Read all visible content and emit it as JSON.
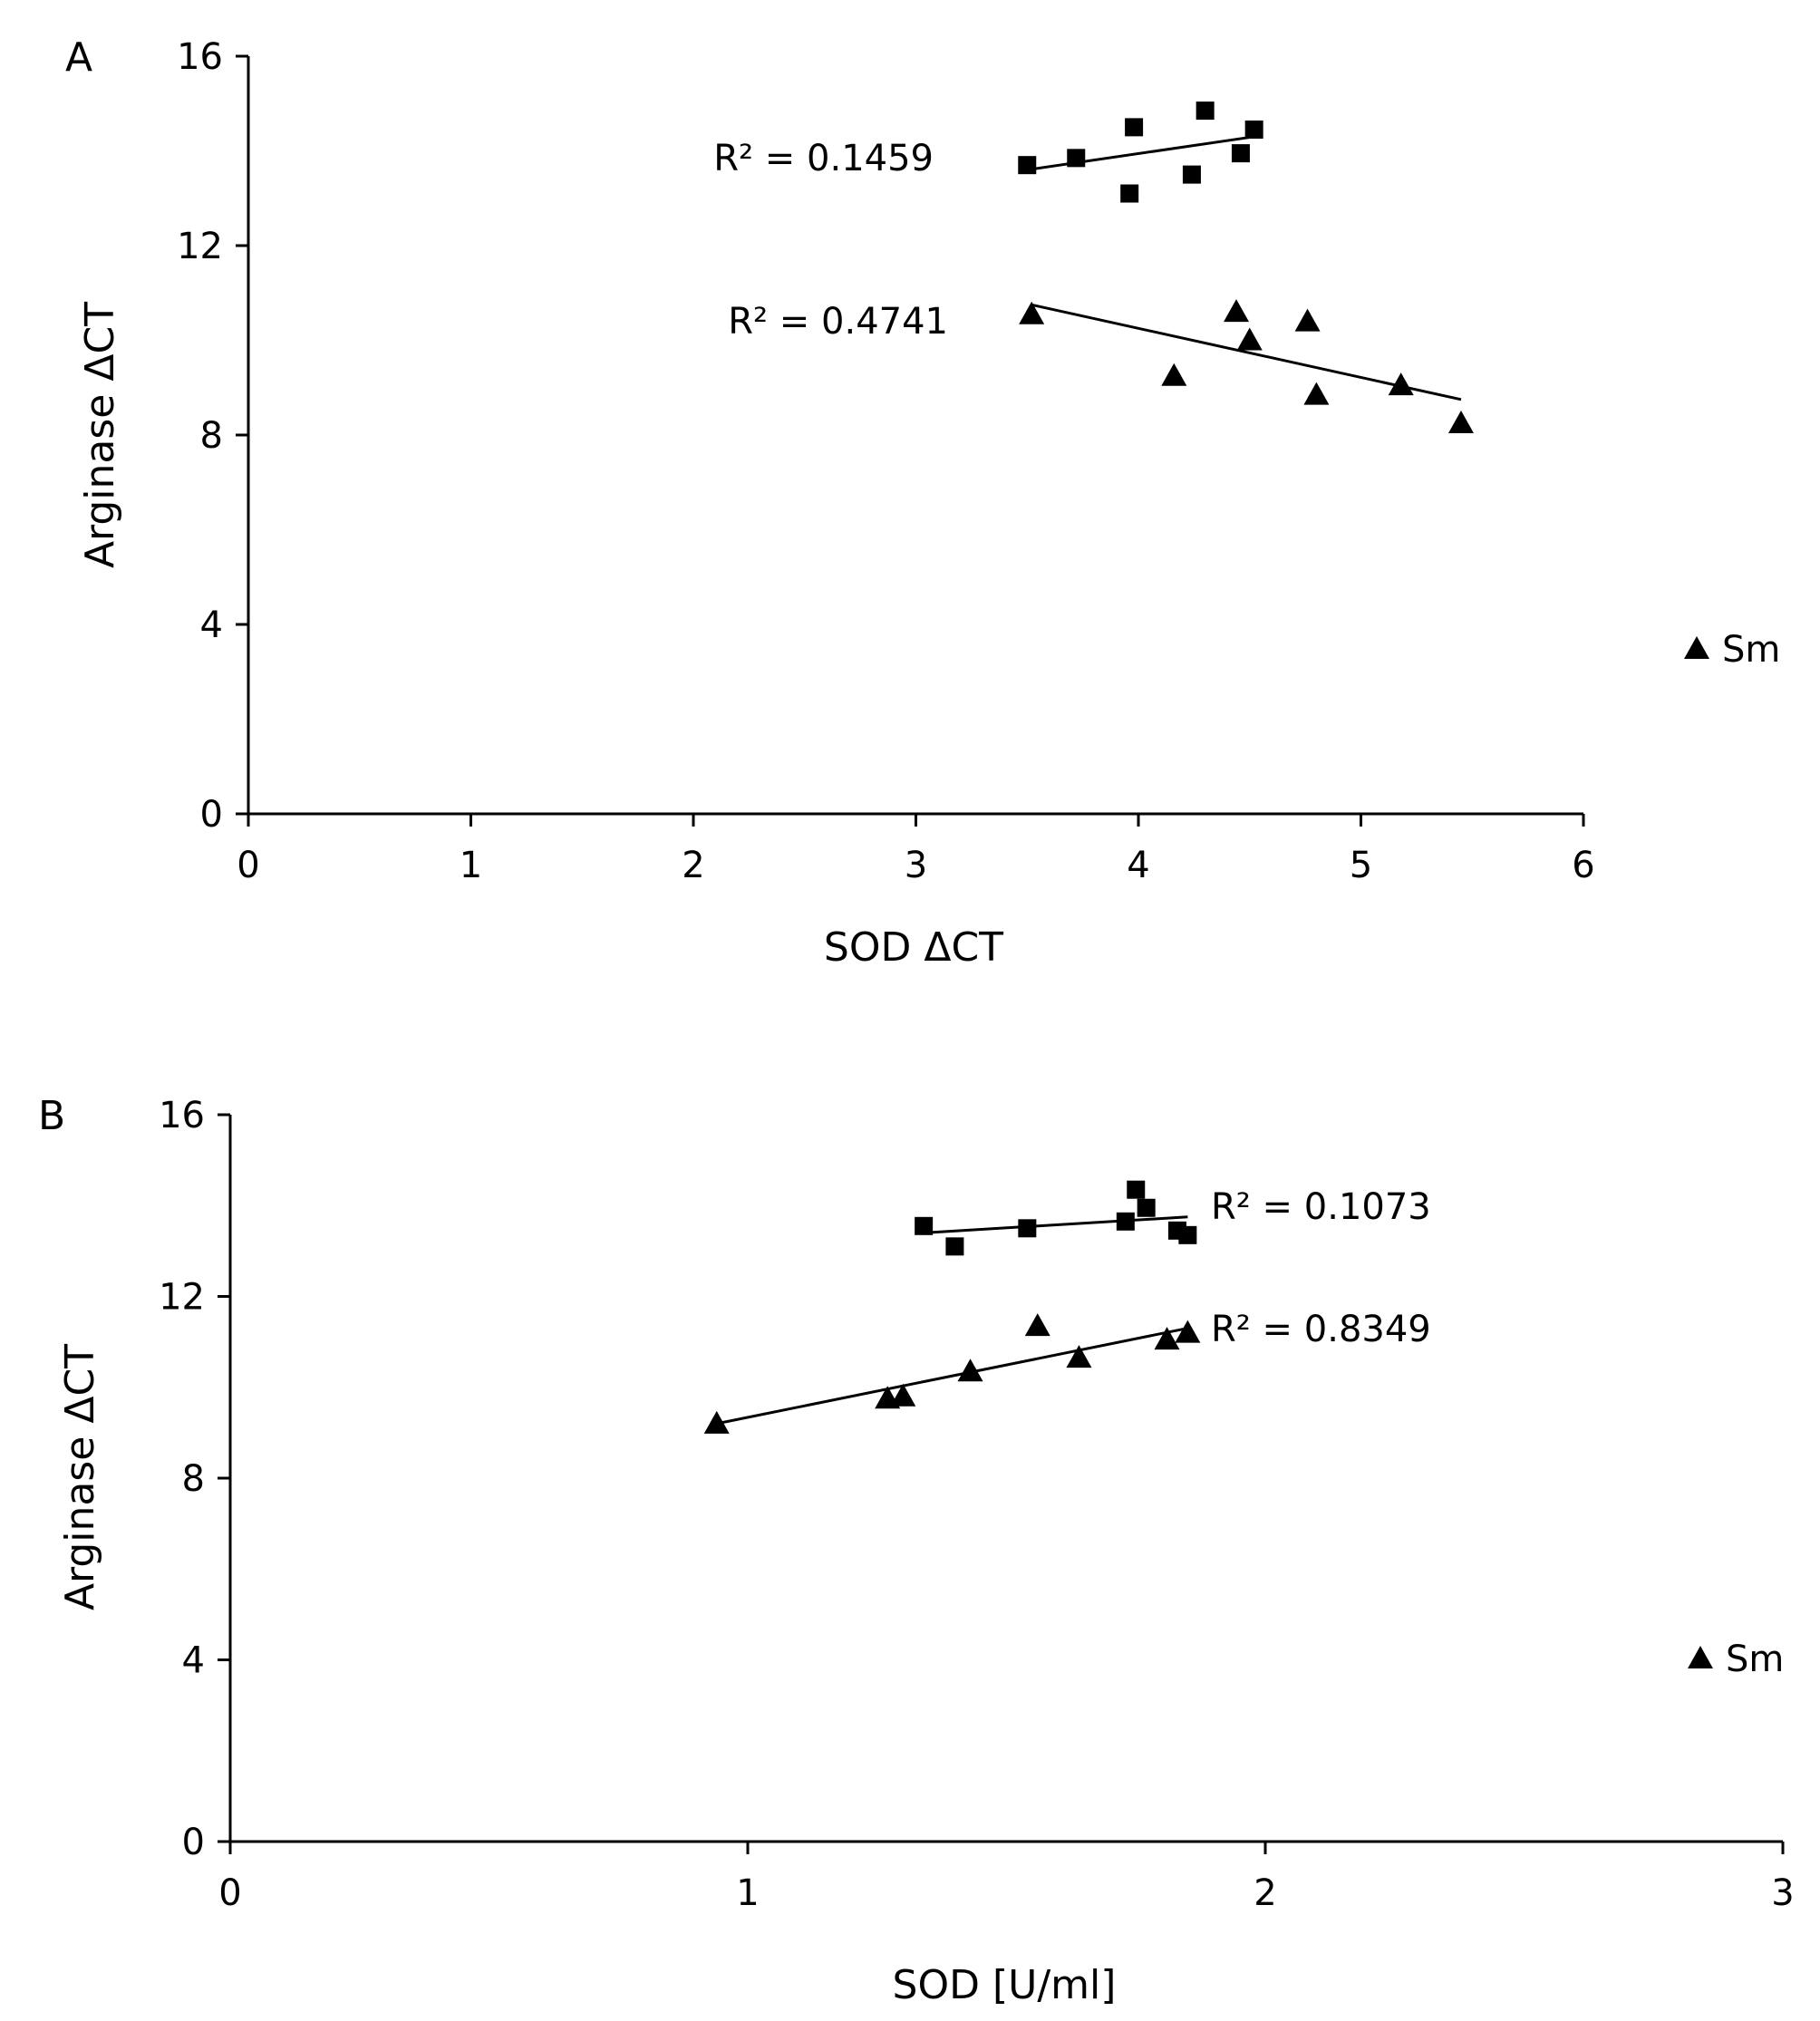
{
  "chart_data": [
    {
      "type": "scatter",
      "panel_label": "A",
      "xlabel": "SOD ΔCT",
      "ylabel": "Arginase  ΔCT",
      "xlim": [
        0,
        6
      ],
      "ylim": [
        0,
        16
      ],
      "xticks": [
        "0",
        "1",
        "2",
        "3",
        "4",
        "5",
        "6"
      ],
      "yticks": [
        "0",
        "4",
        "8",
        "12",
        "16"
      ],
      "legend": {
        "label": "Sm",
        "marker": "triangle",
        "position": "right"
      },
      "series": [
        {
          "name": "square-series",
          "marker": "square",
          "points": [
            [
              3.5,
              13.7
            ],
            [
              3.72,
              13.85
            ],
            [
              3.96,
              13.1
            ],
            [
              3.98,
              14.5
            ],
            [
              4.24,
              13.5
            ],
            [
              4.3,
              14.85
            ],
            [
              4.46,
              13.95
            ],
            [
              4.52,
              14.45
            ]
          ],
          "trendline": {
            "x": [
              3.5,
              4.52
            ],
            "y": [
              13.6,
              14.3
            ]
          },
          "r2_label": "R² = 0.1459"
        },
        {
          "name": "triangle-series",
          "marker": "triangle",
          "points": [
            [
              3.52,
              10.55
            ],
            [
              4.16,
              9.25
            ],
            [
              4.44,
              10.6
            ],
            [
              4.5,
              10.0
            ],
            [
              4.76,
              10.4
            ],
            [
              4.8,
              8.85
            ],
            [
              5.18,
              9.05
            ],
            [
              5.45,
              8.25
            ]
          ],
          "trendline": {
            "x": [
              3.52,
              5.45
            ],
            "y": [
              10.75,
              8.75
            ]
          },
          "r2_label": "R² = 0.4741"
        }
      ]
    },
    {
      "type": "scatter",
      "panel_label": "B",
      "xlabel": "SOD [U/ml]",
      "ylabel": "Arginase  ΔCT",
      "xlim": [
        0,
        3
      ],
      "ylim": [
        0,
        16
      ],
      "xticks": [
        "0",
        "1",
        "2",
        "3"
      ],
      "yticks": [
        "0",
        "4",
        "8",
        "12",
        "16"
      ],
      "legend": {
        "label": "Sm",
        "marker": "triangle",
        "position": "right"
      },
      "series": [
        {
          "name": "square-series",
          "marker": "square",
          "points": [
            [
              1.34,
              13.55
            ],
            [
              1.4,
              13.1
            ],
            [
              1.54,
              13.5
            ],
            [
              1.73,
              13.65
            ],
            [
              1.75,
              14.35
            ],
            [
              1.77,
              13.95
            ],
            [
              1.83,
              13.45
            ],
            [
              1.85,
              13.35
            ]
          ],
          "trendline": {
            "x": [
              1.34,
              1.85
            ],
            "y": [
              13.4,
              13.75
            ]
          },
          "r2_label": "R² = 0.1073"
        },
        {
          "name": "triangle-series",
          "marker": "triangle",
          "points": [
            [
              0.94,
              9.2
            ],
            [
              1.27,
              9.75
            ],
            [
              1.3,
              9.8
            ],
            [
              1.43,
              10.35
            ],
            [
              1.56,
              11.35
            ],
            [
              1.64,
              10.65
            ],
            [
              1.81,
              11.05
            ],
            [
              1.85,
              11.2
            ]
          ],
          "trendline": {
            "x": [
              0.94,
              1.85
            ],
            "y": [
              9.2,
              11.3
            ]
          },
          "r2_label": "R² = 0.8349"
        }
      ]
    }
  ]
}
